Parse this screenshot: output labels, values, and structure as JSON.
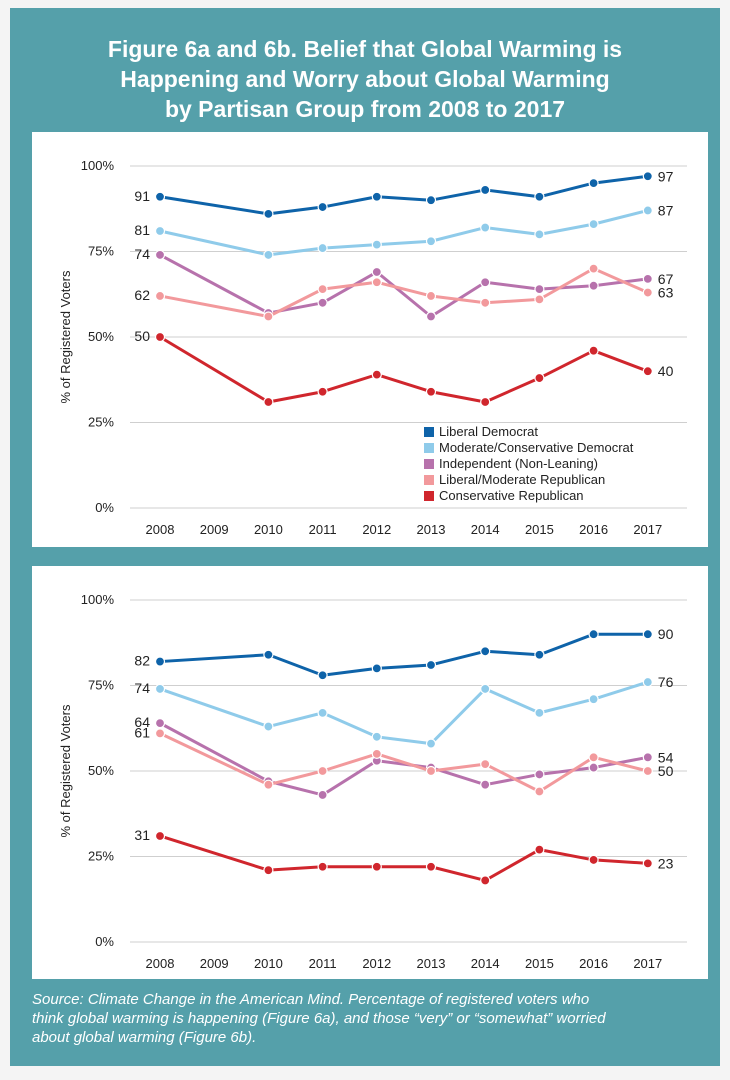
{
  "title_lines": [
    "Figure 6a and 6b.  Belief that Global Warming is",
    "Happening and Worry about Global Warming",
    "by Partisan Group from 2008 to 2017"
  ],
  "source_lines": [
    "Source: Climate Change in the American Mind. Percentage of registered voters who",
    "think global warming is happening (Figure 6a), and those “very” or “somewhat” worried",
    "about global warming (Figure 6b)."
  ],
  "colors": {
    "background": "#55a0aa",
    "liberal_democrat": "#0e63a9",
    "moderate_conservative_democrat": "#8fcbea",
    "independent": "#b772ac",
    "liberal_moderate_republican": "#f2999c",
    "conservative_republican": "#d0262d"
  },
  "chart_data": [
    {
      "id": "figure-6a",
      "type": "line",
      "title": "Belief that Global Warming is Happening",
      "ylabel": "% of Registered Voters",
      "xlabel": "",
      "ylim": [
        0,
        100
      ],
      "yticks": [
        "0%",
        "25%",
        "50%",
        "75%",
        "100%"
      ],
      "x": [
        2008,
        2009,
        2010,
        2011,
        2012,
        2013,
        2014,
        2015,
        2016,
        2017
      ],
      "grid": true,
      "legend": "bottom-right",
      "series": [
        {
          "name": "Liberal Democrat",
          "color": "#0e63a9",
          "points": [
            [
              2008,
              91
            ],
            [
              2010,
              86
            ],
            [
              2011,
              88
            ],
            [
              2012,
              91
            ],
            [
              2013,
              90
            ],
            [
              2014,
              93
            ],
            [
              2015,
              91
            ],
            [
              2016,
              95
            ],
            [
              2017,
              97
            ]
          ],
          "start_label": "91",
          "end_label": "97"
        },
        {
          "name": "Moderate/Conservative Democrat",
          "color": "#8fcbea",
          "points": [
            [
              2008,
              81
            ],
            [
              2010,
              74
            ],
            [
              2011,
              76
            ],
            [
              2012,
              77
            ],
            [
              2013,
              78
            ],
            [
              2014,
              82
            ],
            [
              2015,
              80
            ],
            [
              2016,
              83
            ],
            [
              2017,
              87
            ]
          ],
          "start_label": "81",
          "end_label": "87"
        },
        {
          "name": "Independent (Non-Leaning)",
          "color": "#b772ac",
          "points": [
            [
              2008,
              74
            ],
            [
              2010,
              57
            ],
            [
              2011,
              60
            ],
            [
              2012,
              69
            ],
            [
              2013,
              56
            ],
            [
              2014,
              66
            ],
            [
              2015,
              64
            ],
            [
              2016,
              65
            ],
            [
              2017,
              67
            ]
          ],
          "start_label": "74",
          "end_label": "67"
        },
        {
          "name": "Liberal/Moderate Republican",
          "color": "#f2999c",
          "points": [
            [
              2008,
              62
            ],
            [
              2010,
              56
            ],
            [
              2011,
              64
            ],
            [
              2012,
              66
            ],
            [
              2013,
              62
            ],
            [
              2014,
              60
            ],
            [
              2015,
              61
            ],
            [
              2016,
              70
            ],
            [
              2017,
              63
            ]
          ],
          "start_label": "62",
          "end_label": "63"
        },
        {
          "name": "Conservative Republican",
          "color": "#d0262d",
          "points": [
            [
              2008,
              50
            ],
            [
              2010,
              31
            ],
            [
              2011,
              34
            ],
            [
              2012,
              39
            ],
            [
              2013,
              34
            ],
            [
              2014,
              31
            ],
            [
              2015,
              38
            ],
            [
              2016,
              46
            ],
            [
              2017,
              40
            ]
          ],
          "start_label": "50",
          "end_label": "40"
        }
      ]
    },
    {
      "id": "figure-6b",
      "type": "line",
      "title": "Worry about Global Warming",
      "ylabel": "% of Registered Voters",
      "xlabel": "",
      "ylim": [
        0,
        100
      ],
      "yticks": [
        "0%",
        "25%",
        "50%",
        "75%",
        "100%"
      ],
      "x": [
        2008,
        2009,
        2010,
        2011,
        2012,
        2013,
        2014,
        2015,
        2016,
        2017
      ],
      "grid": true,
      "legend": "none",
      "series": [
        {
          "name": "Liberal Democrat",
          "color": "#0e63a9",
          "points": [
            [
              2008,
              82
            ],
            [
              2010,
              84
            ],
            [
              2011,
              78
            ],
            [
              2012,
              80
            ],
            [
              2013,
              81
            ],
            [
              2014,
              85
            ],
            [
              2015,
              84
            ],
            [
              2016,
              90
            ],
            [
              2017,
              90
            ]
          ],
          "start_label": "82",
          "end_label": "90"
        },
        {
          "name": "Moderate/Conservative Democrat",
          "color": "#8fcbea",
          "points": [
            [
              2008,
              74
            ],
            [
              2010,
              63
            ],
            [
              2011,
              67
            ],
            [
              2012,
              60
            ],
            [
              2013,
              58
            ],
            [
              2014,
              74
            ],
            [
              2015,
              67
            ],
            [
              2016,
              71
            ],
            [
              2017,
              76
            ]
          ],
          "start_label": "74",
          "end_label": "76"
        },
        {
          "name": "Independent (Non-Leaning)",
          "color": "#b772ac",
          "points": [
            [
              2008,
              64
            ],
            [
              2010,
              47
            ],
            [
              2011,
              43
            ],
            [
              2012,
              53
            ],
            [
              2013,
              51
            ],
            [
              2014,
              46
            ],
            [
              2015,
              49
            ],
            [
              2016,
              51
            ],
            [
              2017,
              54
            ]
          ],
          "start_label": "64",
          "end_label": "54"
        },
        {
          "name": "Liberal/Moderate Republican",
          "color": "#f2999c",
          "points": [
            [
              2008,
              61
            ],
            [
              2010,
              46
            ],
            [
              2011,
              50
            ],
            [
              2012,
              55
            ],
            [
              2013,
              50
            ],
            [
              2014,
              52
            ],
            [
              2015,
              44
            ],
            [
              2016,
              54
            ],
            [
              2017,
              50
            ]
          ],
          "start_label": "61",
          "end_label": "50"
        },
        {
          "name": "Conservative Republican",
          "color": "#d0262d",
          "points": [
            [
              2008,
              31
            ],
            [
              2010,
              21
            ],
            [
              2011,
              22
            ],
            [
              2012,
              22
            ],
            [
              2013,
              22
            ],
            [
              2014,
              18
            ],
            [
              2015,
              27
            ],
            [
              2016,
              24
            ],
            [
              2017,
              23
            ]
          ],
          "start_label": "31",
          "end_label": "23"
        }
      ]
    }
  ]
}
